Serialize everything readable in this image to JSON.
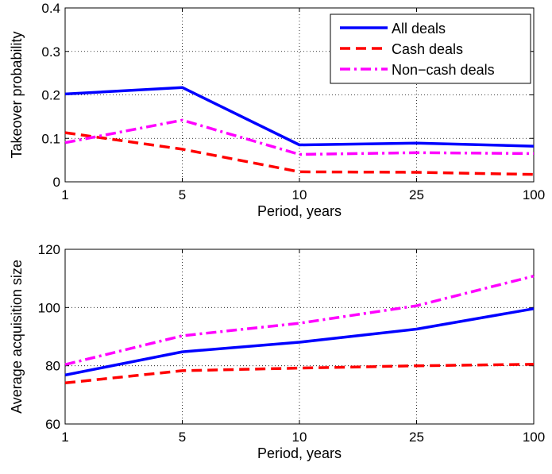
{
  "chart_data": [
    {
      "type": "line",
      "categories": [
        "1",
        "5",
        "10",
        "25",
        "100"
      ],
      "xlabel": "Period, years",
      "ylabel": "Takeover probability",
      "ylim": [
        0,
        0.4
      ],
      "yticks": [
        "0",
        "0.1",
        "0.2",
        "0.3",
        "0.4"
      ],
      "grid": true,
      "legend": "top-right",
      "series": [
        {
          "name": "All deals",
          "color": "#0000ff",
          "style": "solid",
          "values": [
            0.202,
            0.217,
            0.085,
            0.089,
            0.082
          ]
        },
        {
          "name": "Cash deals",
          "color": "#ff0000",
          "style": "dashed",
          "values": [
            0.113,
            0.075,
            0.023,
            0.022,
            0.017
          ]
        },
        {
          "name": "Non−cash deals",
          "color": "#ff00ff",
          "style": "dashdot",
          "values": [
            0.09,
            0.142,
            0.063,
            0.067,
            0.065
          ]
        }
      ]
    },
    {
      "type": "line",
      "categories": [
        "1",
        "5",
        "10",
        "25",
        "100"
      ],
      "xlabel": "Period, years",
      "ylabel": "Average acquisition size",
      "ylim": [
        60,
        120
      ],
      "yticks": [
        "60",
        "80",
        "100",
        "120"
      ],
      "grid": true,
      "series": [
        {
          "color": "#0000ff",
          "style": "solid",
          "values": [
            76.8,
            84.8,
            88.1,
            92.6,
            99.6
          ]
        },
        {
          "color": "#ff0000",
          "style": "dashed",
          "values": [
            74.1,
            78.3,
            79.2,
            80.0,
            80.5
          ]
        },
        {
          "color": "#ff00ff",
          "style": "dashdot",
          "values": [
            80.4,
            90.3,
            94.6,
            100.6,
            110.8
          ]
        }
      ]
    }
  ]
}
